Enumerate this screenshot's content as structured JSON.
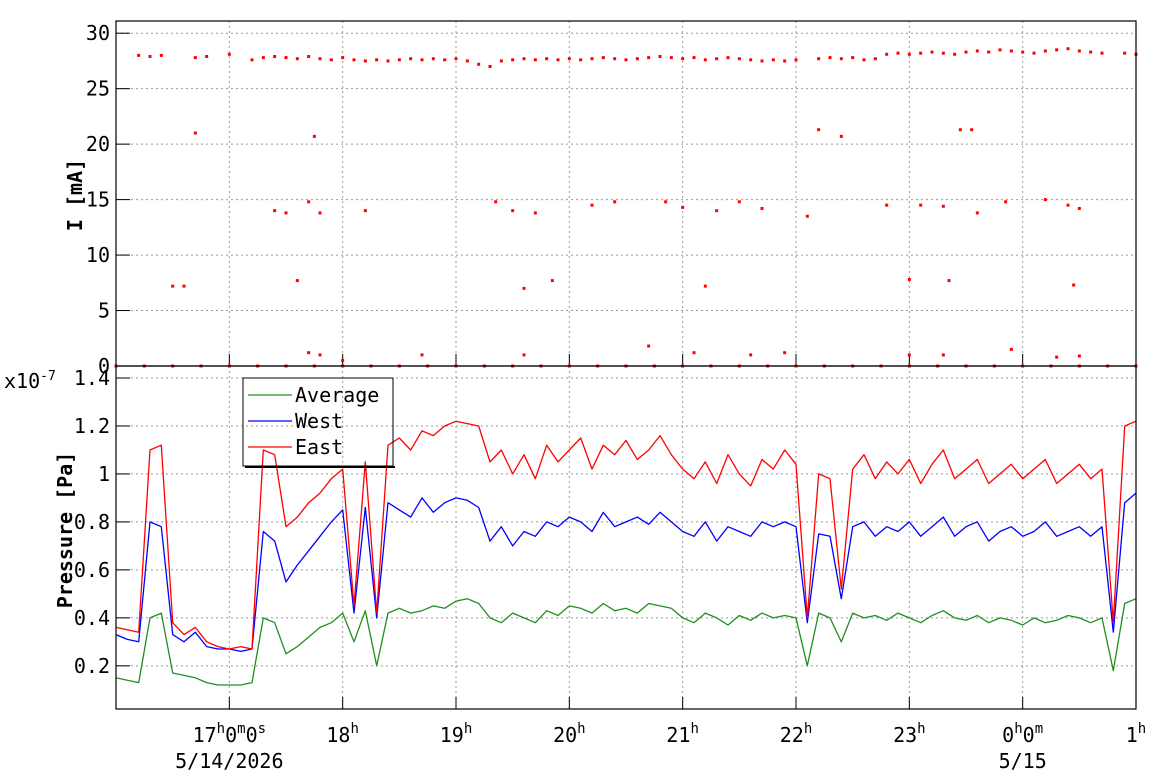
{
  "chart_data": [
    {
      "type": "scatter",
      "ylabel": "I [mA]",
      "color": "#ff0000",
      "grid": true,
      "xlim": [
        16,
        25
      ],
      "ylim": [
        0,
        31.1
      ],
      "yticks": [
        0,
        5,
        10,
        15,
        20,
        25,
        30
      ],
      "x": [
        16.2,
        16.3,
        16.4,
        16.7,
        16.8,
        17.0,
        17.2,
        17.3,
        17.4,
        17.5,
        17.6,
        17.7,
        17.8,
        17.9,
        18.0,
        18.1,
        18.2,
        18.3,
        18.4,
        18.5,
        18.6,
        18.7,
        18.8,
        18.9,
        19.0,
        19.1,
        19.2,
        19.3,
        19.4,
        19.5,
        19.6,
        19.7,
        19.8,
        19.9,
        20.0,
        20.1,
        20.2,
        20.3,
        20.4,
        20.5,
        20.6,
        20.7,
        20.8,
        20.9,
        21.0,
        21.1,
        21.2,
        21.3,
        21.4,
        21.5,
        21.6,
        21.7,
        21.8,
        21.9,
        22.0,
        22.2,
        22.3,
        22.4,
        22.5,
        22.6,
        22.7,
        22.8,
        22.9,
        23.0,
        23.1,
        23.2,
        23.3,
        23.4,
        23.5,
        23.6,
        23.7,
        23.8,
        23.9,
        24.0,
        24.1,
        24.2,
        24.3,
        24.4,
        24.5,
        24.6,
        24.7,
        24.9,
        25.0,
        16.5,
        16.6,
        16.7,
        17.4,
        17.5,
        17.6,
        17.7,
        17.75,
        17.8,
        18.2,
        19.35,
        19.5,
        19.6,
        19.7,
        19.85,
        20.2,
        20.4,
        20.85,
        21.0,
        21.2,
        21.3,
        21.5,
        21.7,
        22.1,
        22.2,
        22.4,
        22.8,
        23.0,
        23.1,
        23.3,
        23.35,
        23.45,
        23.55,
        23.6,
        23.85,
        24.2,
        24.4,
        24.45,
        24.5,
        17.7,
        17.8,
        18.0,
        18.7,
        19.6,
        20.7,
        21.1,
        21.6,
        21.9,
        23.0,
        23.3,
        23.9,
        24.3,
        24.5,
        16.0,
        16.25,
        16.5,
        16.75,
        17.0,
        17.25,
        17.5,
        17.75,
        18.0,
        18.25,
        18.5,
        18.75,
        19.0,
        19.25,
        19.5,
        19.75,
        20.0,
        20.25,
        20.5,
        20.75,
        21.0,
        21.25,
        21.5,
        21.75,
        22.0,
        22.25,
        22.5,
        22.75,
        23.0,
        23.25,
        23.5,
        23.75,
        24.0,
        24.25,
        24.5,
        24.75,
        25.0
      ],
      "values": [
        28,
        27.9,
        28,
        27.8,
        27.9,
        28.1,
        27.6,
        27.8,
        27.9,
        27.8,
        27.7,
        27.9,
        27.7,
        27.6,
        27.8,
        27.6,
        27.5,
        27.6,
        27.5,
        27.6,
        27.7,
        27.6,
        27.7,
        27.6,
        27.7,
        27.5,
        27.2,
        27.0,
        27.5,
        27.6,
        27.7,
        27.6,
        27.7,
        27.6,
        27.7,
        27.6,
        27.7,
        27.8,
        27.7,
        27.6,
        27.7,
        27.8,
        27.9,
        27.8,
        27.7,
        27.8,
        27.6,
        27.7,
        27.8,
        27.7,
        27.6,
        27.5,
        27.6,
        27.5,
        27.6,
        27.7,
        27.8,
        27.7,
        27.8,
        27.6,
        27.7,
        28.1,
        28.2,
        28.1,
        28.2,
        28.3,
        28.2,
        28.1,
        28.3,
        28.4,
        28.3,
        28.5,
        28.4,
        28.3,
        28.2,
        28.4,
        28.5,
        28.6,
        28.4,
        28.3,
        28.2,
        28.2,
        28.1,
        7.2,
        7.2,
        21,
        14,
        13.8,
        7.7,
        14.8,
        20.7,
        13.8,
        14,
        14.8,
        14,
        7,
        13.8,
        7.7,
        14.5,
        14.8,
        14.8,
        14.3,
        7.2,
        14,
        14.8,
        14.2,
        13.5,
        21.3,
        20.7,
        14.5,
        7.8,
        14.5,
        14.4,
        7.7,
        21.3,
        21.3,
        13.8,
        14.8,
        15,
        14.5,
        7.3,
        14.2,
        1.2,
        1,
        0.5,
        1,
        1,
        1.8,
        1.2,
        1,
        1.2,
        1,
        1,
        1.5,
        0.8,
        0.9,
        0,
        0,
        0,
        0,
        0,
        0,
        0,
        0,
        0,
        0,
        0,
        0,
        0,
        0,
        0,
        0,
        0,
        0,
        0,
        0,
        0,
        0,
        0,
        0,
        0,
        0,
        0,
        0,
        0,
        0,
        0,
        0,
        0,
        0,
        0,
        0,
        0
      ]
    },
    {
      "type": "line",
      "ylabel": "Pressure [Pa]",
      "y_multiplier": {
        "base": "x10",
        "exponent": "-7"
      },
      "grid": true,
      "legend": "top-left",
      "xlim": [
        16,
        25
      ],
      "ylim": [
        0.02,
        1.45
      ],
      "yticks": [
        0.2,
        0.4,
        0.6,
        0.8,
        1,
        1.2,
        1.4
      ],
      "xticks": [
        {
          "value": 17,
          "label": "17h0m0s"
        },
        {
          "value": 18,
          "label": "18h"
        },
        {
          "value": 19,
          "label": "19h"
        },
        {
          "value": 20,
          "label": "20h"
        },
        {
          "value": 21,
          "label": "21h"
        },
        {
          "value": 22,
          "label": "22h"
        },
        {
          "value": 23,
          "label": "23h"
        },
        {
          "value": 24,
          "label": "0h0m"
        },
        {
          "value": 25,
          "label": "1h"
        }
      ],
      "date_labels": [
        {
          "value": 17,
          "label": "5/14/2026"
        },
        {
          "value": 24,
          "label": "5/15"
        }
      ],
      "x": [
        16.0,
        16.1,
        16.2,
        16.3,
        16.4,
        16.5,
        16.6,
        16.7,
        16.8,
        16.9,
        17.0,
        17.1,
        17.2,
        17.3,
        17.4,
        17.5,
        17.6,
        17.7,
        17.8,
        17.9,
        18.0,
        18.1,
        18.2,
        18.3,
        18.4,
        18.5,
        18.6,
        18.7,
        18.8,
        18.9,
        19.0,
        19.1,
        19.2,
        19.3,
        19.4,
        19.5,
        19.6,
        19.7,
        19.8,
        19.9,
        20.0,
        20.1,
        20.2,
        20.3,
        20.4,
        20.5,
        20.6,
        20.7,
        20.8,
        20.9,
        21.0,
        21.1,
        21.2,
        21.3,
        21.4,
        21.5,
        21.6,
        21.7,
        21.8,
        21.9,
        22.0,
        22.1,
        22.2,
        22.3,
        22.4,
        22.5,
        22.6,
        22.7,
        22.8,
        22.9,
        23.0,
        23.1,
        23.2,
        23.3,
        23.4,
        23.5,
        23.6,
        23.7,
        23.8,
        23.9,
        24.0,
        24.1,
        24.2,
        24.3,
        24.4,
        24.5,
        24.6,
        24.7,
        24.8,
        24.9,
        25.0
      ],
      "series": [
        {
          "name": "Average",
          "color": "#1f8f1f",
          "values": [
            0.15,
            0.14,
            0.13,
            0.4,
            0.42,
            0.17,
            0.16,
            0.15,
            0.13,
            0.12,
            0.12,
            0.12,
            0.13,
            0.4,
            0.38,
            0.25,
            0.28,
            0.32,
            0.36,
            0.38,
            0.42,
            0.3,
            0.43,
            0.2,
            0.42,
            0.44,
            0.42,
            0.43,
            0.45,
            0.44,
            0.47,
            0.48,
            0.46,
            0.4,
            0.38,
            0.42,
            0.4,
            0.38,
            0.43,
            0.41,
            0.45,
            0.44,
            0.42,
            0.46,
            0.43,
            0.44,
            0.42,
            0.46,
            0.45,
            0.44,
            0.4,
            0.38,
            0.42,
            0.4,
            0.37,
            0.41,
            0.39,
            0.42,
            0.4,
            0.41,
            0.4,
            0.2,
            0.42,
            0.4,
            0.3,
            0.42,
            0.4,
            0.41,
            0.39,
            0.42,
            0.4,
            0.38,
            0.41,
            0.43,
            0.4,
            0.39,
            0.41,
            0.38,
            0.4,
            0.39,
            0.37,
            0.4,
            0.38,
            0.39,
            0.41,
            0.4,
            0.38,
            0.4,
            0.18,
            0.46,
            0.48
          ]
        },
        {
          "name": "West",
          "color": "#0000ff",
          "values": [
            0.33,
            0.31,
            0.3,
            0.8,
            0.78,
            0.33,
            0.3,
            0.34,
            0.28,
            0.27,
            0.27,
            0.26,
            0.27,
            0.76,
            0.72,
            0.55,
            0.62,
            0.68,
            0.74,
            0.8,
            0.85,
            0.42,
            0.86,
            0.4,
            0.88,
            0.85,
            0.82,
            0.9,
            0.84,
            0.88,
            0.9,
            0.89,
            0.86,
            0.72,
            0.78,
            0.7,
            0.76,
            0.74,
            0.8,
            0.78,
            0.82,
            0.8,
            0.76,
            0.84,
            0.78,
            0.8,
            0.82,
            0.79,
            0.84,
            0.8,
            0.76,
            0.74,
            0.8,
            0.72,
            0.78,
            0.76,
            0.74,
            0.8,
            0.78,
            0.8,
            0.78,
            0.38,
            0.75,
            0.74,
            0.48,
            0.78,
            0.8,
            0.74,
            0.78,
            0.76,
            0.8,
            0.74,
            0.78,
            0.82,
            0.74,
            0.78,
            0.8,
            0.72,
            0.76,
            0.78,
            0.74,
            0.76,
            0.8,
            0.74,
            0.76,
            0.78,
            0.74,
            0.78,
            0.34,
            0.88,
            0.92
          ]
        },
        {
          "name": "East",
          "color": "#ff0000",
          "values": [
            0.36,
            0.35,
            0.34,
            1.1,
            1.12,
            0.38,
            0.33,
            0.36,
            0.3,
            0.28,
            0.27,
            0.28,
            0.27,
            1.1,
            1.08,
            0.78,
            0.82,
            0.88,
            0.92,
            0.98,
            1.02,
            0.45,
            1.05,
            0.42,
            1.12,
            1.15,
            1.1,
            1.18,
            1.16,
            1.2,
            1.22,
            1.21,
            1.2,
            1.05,
            1.1,
            1.0,
            1.08,
            0.98,
            1.12,
            1.05,
            1.1,
            1.15,
            1.02,
            1.12,
            1.08,
            1.14,
            1.06,
            1.1,
            1.16,
            1.08,
            1.02,
            0.98,
            1.05,
            0.96,
            1.08,
            1.0,
            0.95,
            1.06,
            1.02,
            1.1,
            1.04,
            0.4,
            1.0,
            0.98,
            0.52,
            1.02,
            1.08,
            0.98,
            1.05,
            1.0,
            1.06,
            0.96,
            1.04,
            1.1,
            0.98,
            1.02,
            1.06,
            0.96,
            1.0,
            1.04,
            0.98,
            1.02,
            1.06,
            0.96,
            1.0,
            1.04,
            0.98,
            1.02,
            0.38,
            1.2,
            1.22
          ]
        }
      ]
    }
  ]
}
